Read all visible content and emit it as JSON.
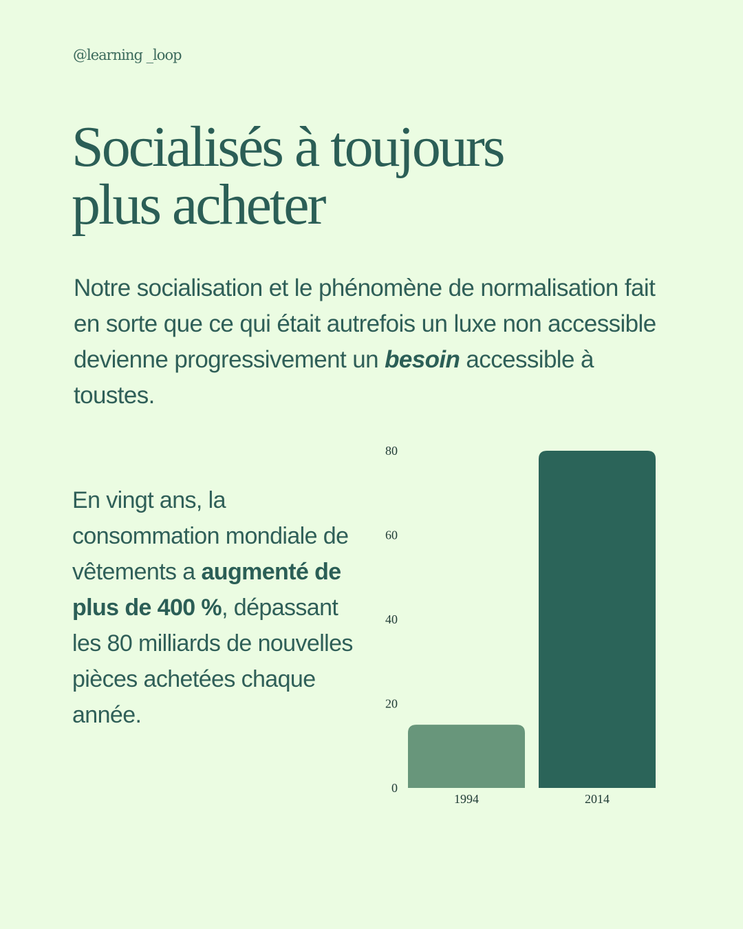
{
  "handle": "@learning _loop",
  "title": {
    "line1": "Socialisés à toujours",
    "line2": "plus acheter"
  },
  "intro": {
    "text_before": "Notre socialisation et le phénomène de normalisation fait en sorte que ce qui était autrefois un luxe non accessible devienne progressivement un ",
    "emphasis": "besoin",
    "text_after": " accessible à toustes."
  },
  "stat": {
    "text_before": "En vingt ans, la consommation mondiale de vêtements a ",
    "emphasis": "augmenté de plus de 400 %",
    "text_after": ", dépassant les 80 milliards de nouvelles pièces achetées chaque année."
  },
  "chart_data": {
    "type": "bar",
    "categories": [
      "1994",
      "2014"
    ],
    "values": [
      15,
      80
    ],
    "bar_colors": [
      "#68967b",
      "#2b6459"
    ],
    "ylim": [
      0,
      80
    ],
    "yticks": [
      0,
      20,
      40,
      60,
      80
    ],
    "grid": false,
    "title": "",
    "xlabel": "",
    "ylabel": ""
  }
}
